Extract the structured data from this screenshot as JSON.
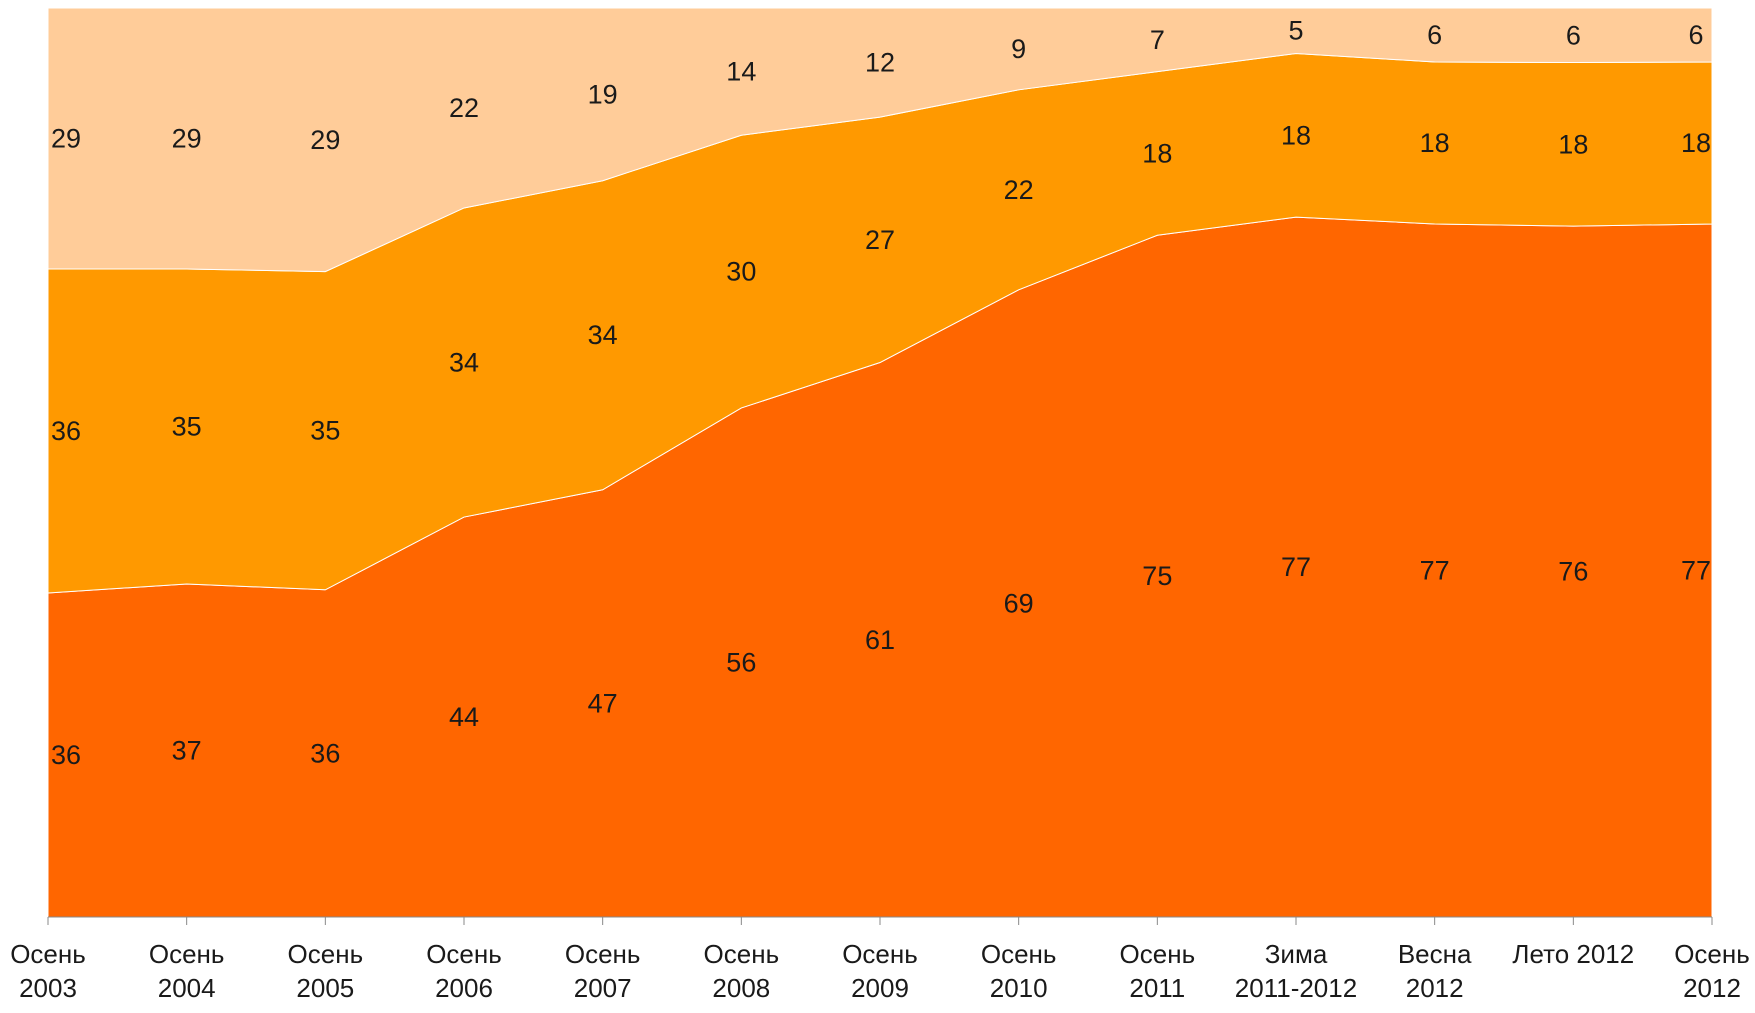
{
  "chart_data": {
    "type": "area",
    "stacked": true,
    "percent": true,
    "title": "",
    "xlabel": "",
    "ylabel": "",
    "ylim": [
      0,
      100
    ],
    "grid": false,
    "legend": "none",
    "categories": [
      [
        "Осень",
        "2003"
      ],
      [
        "Осень",
        "2004"
      ],
      [
        "Осень",
        "2005"
      ],
      [
        "Осень",
        "2006"
      ],
      [
        "Осень",
        "2007"
      ],
      [
        "Осень",
        "2008"
      ],
      [
        "Осень",
        "2009"
      ],
      [
        "Осень",
        "2010"
      ],
      [
        "Осень",
        "2011"
      ],
      [
        "Зима",
        "2011-2012"
      ],
      [
        "Весна",
        "2012"
      ],
      [
        "Лето 2012",
        ""
      ],
      [
        "Осень",
        "2012"
      ]
    ],
    "series": [
      {
        "color": "#ff6600",
        "values": [
          36,
          37,
          36,
          44,
          47,
          56,
          61,
          69,
          75,
          77,
          77,
          76,
          77
        ]
      },
      {
        "color": "#ff9900",
        "values": [
          36,
          35,
          35,
          34,
          34,
          30,
          27,
          22,
          18,
          18,
          18,
          18,
          18
        ]
      },
      {
        "color": "#ffcc99",
        "values": [
          29,
          29,
          29,
          22,
          19,
          14,
          12,
          9,
          7,
          5,
          6,
          6,
          6
        ]
      }
    ]
  }
}
